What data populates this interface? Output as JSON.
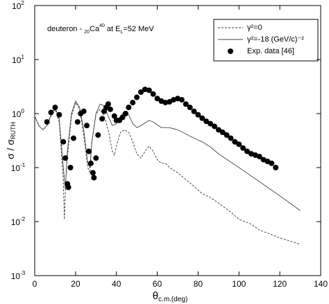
{
  "chart_data": {
    "type": "line",
    "annotation": [
      "deuteron - ",
      "20",
      "Ca",
      "40",
      " at E",
      "L",
      "=52 MeV"
    ],
    "x_label": "θ",
    "x_label_sub": "c.m.(deg)",
    "y_label": "σ / σ",
    "y_label_sub": "RUTH",
    "xlim": [
      0,
      140
    ],
    "xticks": [
      0,
      20,
      40,
      60,
      80,
      100,
      120,
      140
    ],
    "ylim": [
      0.001,
      100
    ],
    "log_y": true,
    "yticks": [
      {
        "value": 0.001,
        "label": "10",
        "exponent": "-3"
      },
      {
        "value": 0.01,
        "label": "10",
        "exponent": "-2"
      },
      {
        "value": 0.1,
        "label": "10",
        "exponent": "-1"
      },
      {
        "value": 1,
        "label": "10",
        "exponent": "0"
      },
      {
        "value": 10,
        "label": "10",
        "exponent": "1"
      },
      {
        "value": 100,
        "label": "10",
        "exponent": "2"
      }
    ],
    "legend": "upper right",
    "series": [
      {
        "name": "γ²=0",
        "color": "#333333",
        "style": "dashed",
        "x": [
          0,
          2,
          4,
          6,
          8,
          10,
          12,
          14,
          14.5,
          15.5,
          18,
          20,
          22,
          24,
          26,
          27,
          28,
          30,
          32,
          34,
          36,
          38,
          39,
          40,
          42,
          44,
          46,
          48,
          50,
          52,
          54,
          56,
          58,
          60,
          62,
          64,
          66,
          70,
          74,
          78,
          82,
          86,
          90,
          96,
          100,
          106,
          110,
          120,
          130
        ],
        "values": [
          0.9,
          0.6,
          0.5,
          0.6,
          0.9,
          1.2,
          0.7,
          0.06,
          0.011,
          0.1,
          0.9,
          1.6,
          1.2,
          0.4,
          0.1,
          0.08,
          0.3,
          1.0,
          1.2,
          0.9,
          0.5,
          0.2,
          0.17,
          0.25,
          0.45,
          0.5,
          0.45,
          0.3,
          0.18,
          0.15,
          0.2,
          0.25,
          0.2,
          0.14,
          0.12,
          0.12,
          0.1,
          0.08,
          0.06,
          0.045,
          0.033,
          0.028,
          0.022,
          0.015,
          0.011,
          0.009,
          0.007,
          0.005,
          0.0038
        ]
      },
      {
        "name": "γ²=-18 (GeV/c)⁻²",
        "color": "#444444",
        "style": "solid",
        "x": [
          0,
          2,
          4,
          6,
          8,
          10,
          12,
          14,
          15,
          16,
          18,
          20,
          22,
          24,
          26,
          27,
          28,
          30,
          32,
          34,
          36,
          38,
          40,
          42,
          44,
          46,
          48,
          50,
          52,
          56,
          58,
          62,
          66,
          70,
          74,
          78,
          82,
          86,
          90,
          100,
          110,
          120,
          130
        ],
        "values": [
          0.9,
          0.6,
          0.5,
          0.6,
          0.95,
          1.3,
          0.8,
          0.1,
          0.04,
          0.2,
          1.0,
          1.7,
          1.3,
          0.5,
          0.12,
          0.1,
          0.3,
          1.0,
          1.5,
          1.4,
          0.9,
          0.6,
          0.65,
          0.9,
          1.1,
          0.95,
          0.65,
          0.55,
          0.6,
          0.75,
          0.7,
          0.55,
          0.55,
          0.5,
          0.42,
          0.35,
          0.3,
          0.24,
          0.18,
          0.1,
          0.055,
          0.03,
          0.016
        ]
      },
      {
        "name": "Exp. data [46]",
        "color": "#000000",
        "style": "markers",
        "x": [
          6,
          8,
          10,
          12,
          14,
          15,
          16,
          16.5,
          17.5,
          19,
          21,
          22.5,
          24,
          25.5,
          26.5,
          27.5,
          28.5,
          29,
          30,
          31,
          33,
          34,
          35,
          36,
          37,
          39,
          40,
          41.5,
          43,
          44.5,
          46,
          48,
          50,
          52,
          54,
          56,
          58,
          60,
          62,
          64,
          66,
          68,
          70,
          72,
          74,
          76,
          78,
          80,
          82,
          84,
          86,
          88,
          90,
          92,
          94,
          96,
          98,
          100,
          102,
          104,
          106,
          108,
          110,
          112,
          114,
          116,
          118
        ],
        "values": [
          0.7,
          1.05,
          1.3,
          0.95,
          0.3,
          0.15,
          0.05,
          0.043,
          0.1,
          0.35,
          0.7,
          1.0,
          1.1,
          0.6,
          0.2,
          0.12,
          0.08,
          0.065,
          0.15,
          0.4,
          0.8,
          1.1,
          1.3,
          1.5,
          1.2,
          0.9,
          0.75,
          0.75,
          0.85,
          1.0,
          1.3,
          1.6,
          2.0,
          2.5,
          2.8,
          2.7,
          2.3,
          1.9,
          1.7,
          1.6,
          1.65,
          1.8,
          1.9,
          1.8,
          1.5,
          1.3,
          1.1,
          0.95,
          0.82,
          0.72,
          0.65,
          0.58,
          0.5,
          0.45,
          0.4,
          0.35,
          0.3,
          0.27,
          0.23,
          0.2,
          0.18,
          0.17,
          0.16,
          0.14,
          0.13,
          0.12,
          0.1
        ]
      }
    ]
  }
}
